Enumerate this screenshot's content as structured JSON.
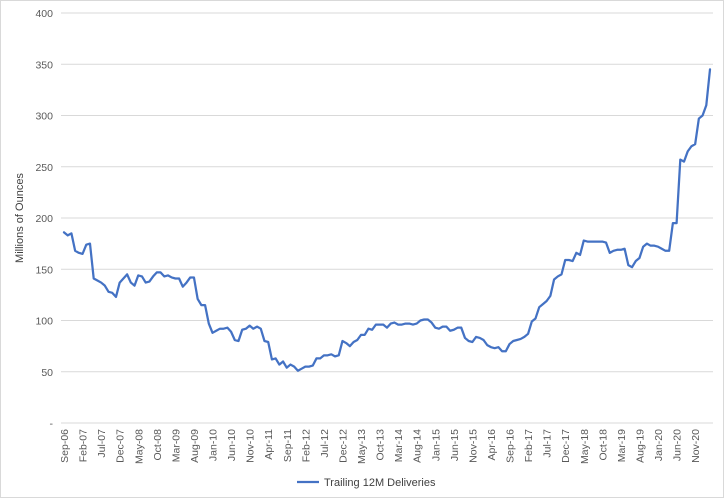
{
  "chart_data": {
    "type": "line",
    "ylabel": "Millions of Ounces",
    "ylim": [
      0,
      400
    ],
    "y_ticks": [
      "-",
      "50",
      "100",
      "150",
      "200",
      "250",
      "300",
      "350",
      "400"
    ],
    "x_ticks": [
      "Sep-06",
      "Feb-07",
      "Jul-07",
      "Dec-07",
      "May-08",
      "Oct-08",
      "Mar-09",
      "Aug-09",
      "Jan-10",
      "Jun-10",
      "Nov-10",
      "Apr-11",
      "Sep-11",
      "Feb-12",
      "Jul-12",
      "Dec-12",
      "May-13",
      "Oct-13",
      "Mar-14",
      "Aug-14",
      "Jan-15",
      "Jun-15",
      "Nov-15",
      "Apr-16",
      "Sep-16",
      "Feb-17",
      "Jul-17",
      "Dec-17",
      "May-18",
      "Oct-18",
      "Mar-19",
      "Aug-19",
      "Jan-20",
      "Jun-20",
      "Nov-20"
    ],
    "x_start": "Sep-06",
    "x_end": "Apr-21",
    "legend_position": "bottom",
    "grid": "horizontal",
    "series": [
      {
        "name": "Trailing 12M Deliveries",
        "color": "#4472c4",
        "values": [
          186,
          183,
          185,
          168,
          166,
          165,
          174,
          175,
          141,
          139,
          137,
          134,
          128,
          127,
          123,
          137,
          141,
          145,
          137,
          134,
          144,
          143,
          137,
          138,
          143,
          147,
          147,
          143,
          144,
          142,
          141,
          141,
          133,
          137,
          142,
          142,
          121,
          115,
          115,
          97,
          88,
          90,
          92,
          92,
          93,
          89,
          81,
          80,
          91,
          92,
          95,
          92,
          94,
          92,
          80,
          79,
          62,
          63,
          57,
          60,
          54,
          57,
          55,
          51,
          53,
          55,
          55,
          56,
          63,
          63,
          66,
          66,
          67,
          65,
          66,
          80,
          78,
          75,
          79,
          81,
          86,
          86,
          92,
          91,
          96,
          96,
          96,
          93,
          97,
          98,
          96,
          96,
          97,
          97,
          96,
          97,
          100,
          101,
          101,
          98,
          93,
          92,
          94,
          94,
          90,
          91,
          93,
          93,
          83,
          80,
          79,
          84,
          83,
          81,
          76,
          74,
          73,
          74,
          70,
          70,
          77,
          80,
          81,
          82,
          84,
          87,
          99,
          102,
          113,
          116,
          119,
          124,
          140,
          143,
          145,
          159,
          159,
          158,
          166,
          164,
          178,
          177,
          177,
          177,
          177,
          177,
          176,
          166,
          168,
          169,
          169,
          170,
          154,
          152,
          158,
          161,
          172,
          175,
          173,
          173,
          172,
          170,
          168,
          168,
          195,
          195,
          257,
          255,
          265,
          270,
          272,
          297,
          300,
          310,
          345
        ]
      }
    ]
  }
}
